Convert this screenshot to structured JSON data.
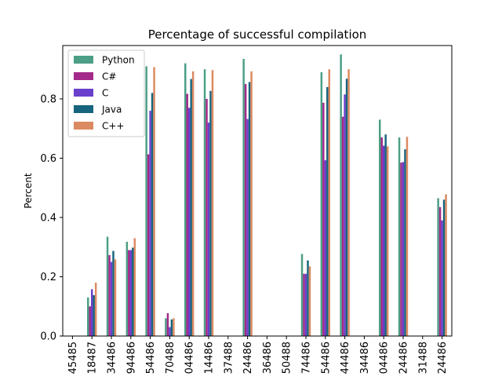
{
  "chart_data": {
    "type": "bar",
    "title": "Percentage of successful compilation",
    "xlabel": "",
    "ylabel": "Percent",
    "ylim": [
      0,
      0.98
    ],
    "yticks": [
      "0.0",
      "0.2",
      "0.4",
      "0.6",
      "0.8"
    ],
    "grid": false,
    "legend_position": "top-left",
    "categories": [
      "45485",
      "18487",
      "34486",
      "94486",
      "54486",
      "70488",
      "04486",
      "14486",
      "37488",
      "24486",
      "36486",
      "50488",
      "74486",
      "54486",
      "44486",
      "34486",
      "04486",
      "24486",
      "31488",
      "24486"
    ],
    "series": [
      {
        "name": "Python",
        "color": "#4c9e86",
        "values": [
          0,
          0.13,
          0.335,
          0.318,
          0.91,
          0.06,
          0.92,
          0.9,
          0,
          0.935,
          0,
          0,
          0.277,
          0.89,
          0.95,
          0,
          0.73,
          0.67,
          0,
          0.465
        ]
      },
      {
        "name": "C#",
        "color": "#a3298a",
        "values": [
          0,
          0.1,
          0.273,
          0.29,
          0.613,
          0.077,
          0.817,
          0.8,
          0,
          0.85,
          0,
          0,
          0.21,
          0.787,
          0.74,
          0,
          0.67,
          0.585,
          0,
          0.435
        ]
      },
      {
        "name": "C",
        "color": "#6a3fcc",
        "values": [
          0,
          0.158,
          0.25,
          0.29,
          0.76,
          0.03,
          0.77,
          0.72,
          0,
          0.732,
          0,
          0,
          0.21,
          0.593,
          0.815,
          0,
          0.642,
          0.587,
          0,
          0.39
        ]
      },
      {
        "name": "Java",
        "color": "#17647e",
        "values": [
          0,
          0.138,
          0.287,
          0.298,
          0.82,
          0.056,
          0.867,
          0.827,
          0,
          0.857,
          0,
          0,
          0.255,
          0.84,
          0.868,
          0,
          0.68,
          0.63,
          0,
          0.46
        ]
      },
      {
        "name": "C++",
        "color": "#dc8a61",
        "values": [
          0,
          0.18,
          0.258,
          0.33,
          0.907,
          0.06,
          0.893,
          0.897,
          0,
          0.893,
          0,
          0,
          0.235,
          0.9,
          0.9,
          0,
          0.64,
          0.672,
          0,
          0.478
        ]
      }
    ]
  }
}
